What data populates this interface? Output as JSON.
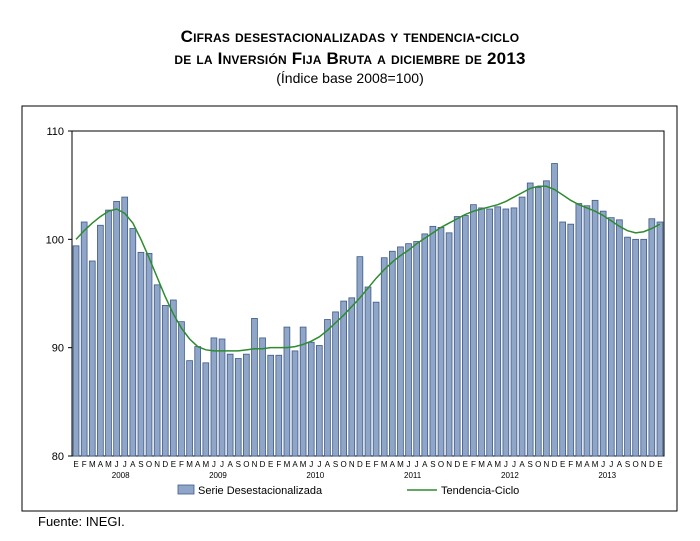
{
  "title_line1": "Cifras desestacionalizadas y tendencia-ciclo",
  "title_line2": "de la Inversión Fija Bruta a diciembre de 2013",
  "subtitle": "(Índice base 2008=100)",
  "source": "Fuente: INEGI.",
  "colors": {
    "bar_fill": "#8FA6C8",
    "bar_stroke": "#3E5A88",
    "trend": "#2E8B2E",
    "frame": "#000000"
  },
  "chart_data": {
    "type": "bar",
    "ylim": [
      80,
      110
    ],
    "yticks": [
      80,
      90,
      100,
      110
    ],
    "month_labels": [
      "E",
      "F",
      "M",
      "A",
      "M",
      "J",
      "J",
      "A",
      "S",
      "O",
      "N",
      "D"
    ],
    "years": [
      "2008",
      "2009",
      "2010",
      "2011",
      "2012",
      "2013"
    ],
    "series": [
      {
        "name": "Serie Desestacionalizada",
        "type": "bar",
        "values": [
          99.4,
          101.6,
          98.0,
          101.3,
          102.7,
          103.5,
          103.9,
          101.0,
          98.8,
          98.7,
          95.8,
          93.9,
          94.4,
          92.4,
          88.8,
          90.1,
          88.6,
          90.9,
          90.8,
          89.4,
          89.0,
          89.4,
          92.7,
          90.9,
          89.3,
          89.3,
          91.9,
          89.7,
          91.9,
          90.5,
          90.2,
          92.6,
          93.3,
          94.3,
          94.6,
          98.4,
          95.6,
          94.2,
          98.3,
          98.9,
          99.3,
          99.6,
          99.8,
          100.5,
          101.2,
          101.1,
          100.6,
          102.1,
          102.2,
          103.2,
          102.9,
          102.8,
          103.0,
          102.8,
          102.9,
          103.9,
          105.2,
          104.8,
          105.4,
          107.0,
          101.6,
          101.4,
          103.3,
          103.1,
          103.6,
          102.6,
          102.0,
          101.8,
          100.2,
          100.0,
          100.0,
          101.9,
          101.6
        ]
      },
      {
        "name": "Tendencia-Ciclo",
        "type": "line",
        "values": [
          100.0,
          100.8,
          101.5,
          102.1,
          102.6,
          102.8,
          102.4,
          101.5,
          100.0,
          98.3,
          96.5,
          94.7,
          93.1,
          91.8,
          90.8,
          90.1,
          89.8,
          89.7,
          89.7,
          89.7,
          89.7,
          89.8,
          89.9,
          89.9,
          90.0,
          90.0,
          90.0,
          90.1,
          90.3,
          90.6,
          91.0,
          91.6,
          92.3,
          93.0,
          93.8,
          94.6,
          95.5,
          96.4,
          97.2,
          97.9,
          98.5,
          99.0,
          99.6,
          100.1,
          100.6,
          101.1,
          101.5,
          101.9,
          102.3,
          102.6,
          102.8,
          103.0,
          103.2,
          103.5,
          103.9,
          104.3,
          104.7,
          104.9,
          104.9,
          104.6,
          104.1,
          103.6,
          103.2,
          102.9,
          102.6,
          102.2,
          101.7,
          101.2,
          100.8,
          100.6,
          100.7,
          101.0,
          101.4
        ]
      }
    ],
    "legend": [
      "Serie Desestacionalizada",
      "Tendencia-Ciclo"
    ],
    "legend_position": "bottom"
  }
}
